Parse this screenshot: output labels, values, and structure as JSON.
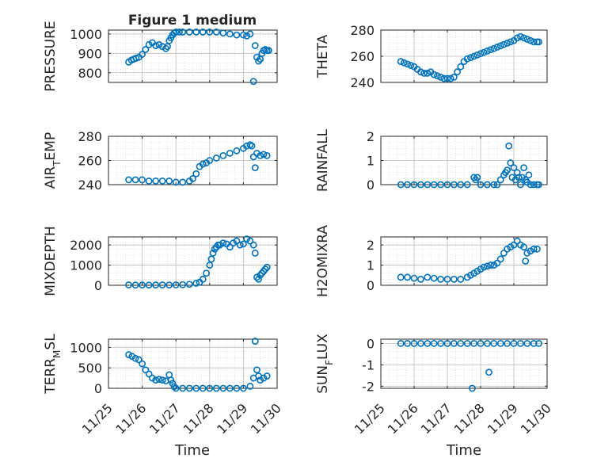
{
  "figure_title": "Figure 1 medium",
  "colors": {
    "marker": "#0072BD",
    "axis": "#262626",
    "grid": "#d0d0d0",
    "background": "#ffffff"
  },
  "chart_data": [
    {
      "type": "scatter",
      "ylabel": "PRESSURE",
      "xlim": [
        0,
        5
      ],
      "ylim": [
        750,
        1020
      ],
      "yticks": [
        800,
        900,
        1000
      ],
      "x": [
        0.6,
        0.68,
        0.75,
        0.82,
        0.9,
        1.0,
        1.1,
        1.2,
        1.3,
        1.4,
        1.5,
        1.6,
        1.7,
        1.75,
        1.8,
        1.85,
        1.9,
        1.95,
        2.0,
        2.1,
        2.2,
        2.4,
        2.6,
        2.8,
        3.0,
        3.2,
        3.4,
        3.6,
        3.8,
        4.0,
        4.1,
        4.2,
        4.3,
        4.35,
        4.4,
        4.45,
        4.5,
        4.55,
        4.6,
        4.65,
        4.7,
        4.75
      ],
      "y": [
        855,
        865,
        870,
        875,
        880,
        895,
        920,
        945,
        955,
        940,
        945,
        935,
        925,
        935,
        965,
        980,
        995,
        1005,
        1010,
        1010,
        1010,
        1010,
        1010,
        1010,
        1010,
        1010,
        1005,
        1000,
        995,
        995,
        990,
        1000,
        755,
        940,
        880,
        860,
        870,
        900,
        915,
        920,
        915,
        915
      ]
    },
    {
      "type": "scatter",
      "ylabel": "THETA",
      "xlim": [
        0,
        5
      ],
      "ylim": [
        240,
        280
      ],
      "yticks": [
        240,
        260,
        280
      ],
      "x": [
        0.6,
        0.7,
        0.8,
        0.9,
        1.0,
        1.1,
        1.2,
        1.3,
        1.4,
        1.5,
        1.6,
        1.7,
        1.8,
        1.9,
        2.0,
        2.1,
        2.2,
        2.3,
        2.4,
        2.5,
        2.6,
        2.7,
        2.8,
        2.9,
        3.0,
        3.1,
        3.2,
        3.3,
        3.4,
        3.5,
        3.6,
        3.7,
        3.8,
        3.9,
        4.0,
        4.1,
        4.2,
        4.3,
        4.4,
        4.5,
        4.6,
        4.7,
        4.75
      ],
      "y": [
        256,
        255,
        254,
        253,
        252,
        250,
        248,
        247,
        247,
        248,
        246,
        245,
        244,
        243,
        243,
        243,
        244,
        248,
        252,
        256,
        258,
        259,
        260,
        261,
        262,
        263,
        264,
        265,
        266,
        267,
        268,
        269,
        270,
        271,
        272,
        274,
        275,
        274,
        273,
        272,
        271,
        271,
        271
      ]
    },
    {
      "type": "scatter",
      "ylabel": "AIR_TEMP",
      "xlim": [
        0,
        5
      ],
      "ylim": [
        240,
        280
      ],
      "yticks": [
        240,
        260,
        280
      ],
      "x": [
        0.6,
        0.8,
        1.0,
        1.2,
        1.4,
        1.6,
        1.8,
        2.0,
        2.2,
        2.4,
        2.5,
        2.6,
        2.7,
        2.8,
        2.9,
        3.0,
        3.2,
        3.4,
        3.6,
        3.8,
        4.0,
        4.1,
        4.2,
        4.25,
        4.3,
        4.35,
        4.4,
        4.5,
        4.6,
        4.7
      ],
      "y": [
        244,
        244,
        244,
        243,
        243,
        243,
        243,
        242,
        242,
        243,
        245,
        249,
        255,
        257,
        258,
        260,
        262,
        264,
        266,
        268,
        270,
        272,
        273,
        272,
        263,
        254,
        266,
        264,
        265,
        264
      ]
    },
    {
      "type": "scatter",
      "ylabel": "RAINFALL",
      "xlim": [
        0,
        5
      ],
      "ylim": [
        0,
        2
      ],
      "yticks": [
        0,
        1,
        2
      ],
      "x": [
        0.6,
        0.8,
        1.0,
        1.2,
        1.4,
        1.6,
        1.8,
        2.0,
        2.2,
        2.4,
        2.6,
        2.8,
        2.85,
        2.9,
        3.0,
        3.2,
        3.4,
        3.5,
        3.6,
        3.7,
        3.75,
        3.8,
        3.85,
        3.9,
        3.95,
        4.0,
        4.05,
        4.1,
        4.15,
        4.2,
        4.25,
        4.3,
        4.35,
        4.4,
        4.45,
        4.5,
        4.6,
        4.7,
        4.75
      ],
      "y": [
        0,
        0,
        0,
        0,
        0,
        0,
        0,
        0,
        0,
        0,
        0,
        0.3,
        0.2,
        0.3,
        0,
        0,
        0,
        0,
        0.2,
        0.4,
        0.5,
        0.6,
        1.6,
        0.9,
        0.3,
        0.7,
        0.2,
        0.5,
        0.3,
        0,
        0.3,
        0.7,
        0.2,
        0.1,
        0.4,
        0,
        0,
        0,
        0
      ]
    },
    {
      "type": "scatter",
      "ylabel": "MIXDEPTH",
      "xlim": [
        0,
        5
      ],
      "ylim": [
        0,
        2400
      ],
      "yticks": [
        0,
        1000,
        2000
      ],
      "x": [
        0.6,
        0.8,
        1.0,
        1.2,
        1.4,
        1.6,
        1.8,
        2.0,
        2.2,
        2.4,
        2.6,
        2.7,
        2.8,
        2.9,
        3.0,
        3.05,
        3.1,
        3.15,
        3.2,
        3.25,
        3.3,
        3.4,
        3.5,
        3.6,
        3.7,
        3.8,
        3.9,
        4.0,
        4.1,
        4.2,
        4.3,
        4.35,
        4.4,
        4.45,
        4.5,
        4.55,
        4.6,
        4.65,
        4.7
      ],
      "y": [
        20,
        10,
        15,
        10,
        15,
        20,
        15,
        20,
        30,
        50,
        100,
        150,
        300,
        600,
        1000,
        1300,
        1600,
        1800,
        1900,
        2000,
        2000,
        2100,
        2050,
        1900,
        2100,
        2200,
        2000,
        2050,
        2300,
        2200,
        2000,
        1600,
        400,
        300,
        500,
        600,
        700,
        800,
        900
      ]
    },
    {
      "type": "scatter",
      "ylabel": "H2OMIXRA",
      "xlim": [
        0,
        5
      ],
      "ylim": [
        0,
        2.4
      ],
      "yticks": [
        0,
        1,
        2
      ],
      "x": [
        0.6,
        0.8,
        1.0,
        1.2,
        1.4,
        1.6,
        1.8,
        2.0,
        2.2,
        2.4,
        2.6,
        2.7,
        2.8,
        2.9,
        3.0,
        3.1,
        3.2,
        3.3,
        3.4,
        3.5,
        3.6,
        3.7,
        3.8,
        3.9,
        4.0,
        4.1,
        4.2,
        4.3,
        4.35,
        4.4,
        4.5,
        4.6,
        4.7
      ],
      "y": [
        0.4,
        0.4,
        0.35,
        0.3,
        0.4,
        0.35,
        0.3,
        0.3,
        0.3,
        0.3,
        0.4,
        0.5,
        0.6,
        0.7,
        0.8,
        0.9,
        0.95,
        1.0,
        1.0,
        1.1,
        1.3,
        1.6,
        1.8,
        1.9,
        2.0,
        2.2,
        2.0,
        1.9,
        1.2,
        1.6,
        1.7,
        1.8,
        1.8
      ]
    },
    {
      "type": "scatter",
      "ylabel": "TERR_MSL",
      "xlim": [
        0,
        5
      ],
      "ylim": [
        0,
        1200
      ],
      "yticks": [
        0,
        500,
        1000
      ],
      "x": [
        0.6,
        0.7,
        0.8,
        0.9,
        1.0,
        1.1,
        1.2,
        1.3,
        1.4,
        1.5,
        1.6,
        1.7,
        1.8,
        1.85,
        1.9,
        1.95,
        2.0,
        2.2,
        2.4,
        2.6,
        2.8,
        3.0,
        3.2,
        3.4,
        3.6,
        3.8,
        4.0,
        4.2,
        4.3,
        4.35,
        4.4,
        4.45,
        4.5,
        4.6,
        4.7
      ],
      "y": [
        820,
        780,
        730,
        700,
        600,
        450,
        350,
        250,
        200,
        220,
        200,
        180,
        330,
        200,
        120,
        40,
        0,
        0,
        0,
        0,
        0,
        0,
        0,
        0,
        0,
        0,
        0,
        50,
        250,
        1150,
        450,
        300,
        200,
        250,
        300
      ]
    },
    {
      "type": "scatter",
      "ylabel": "SUN_FLUX",
      "xlim": [
        0,
        5
      ],
      "ylim": [
        -2.1,
        0.2
      ],
      "yticks": [
        -2,
        -1,
        0
      ],
      "x": [
        0.6,
        0.8,
        1.0,
        1.2,
        1.4,
        1.6,
        1.8,
        2.0,
        2.2,
        2.4,
        2.6,
        2.8,
        3.0,
        3.2,
        3.4,
        3.6,
        3.8,
        4.0,
        4.2,
        4.4,
        4.6,
        4.75,
        2.75,
        3.25
      ],
      "y": [
        0,
        0,
        0,
        0,
        0,
        0,
        0,
        0,
        0,
        0,
        0,
        0,
        0,
        0,
        0,
        0,
        0,
        0,
        0,
        0,
        0,
        0,
        -2.1,
        -1.35
      ]
    }
  ],
  "x_tick_labels": [
    "11/25",
    "11/26",
    "11/27",
    "11/28",
    "11/29",
    "11/30"
  ],
  "xlabel": "Time"
}
